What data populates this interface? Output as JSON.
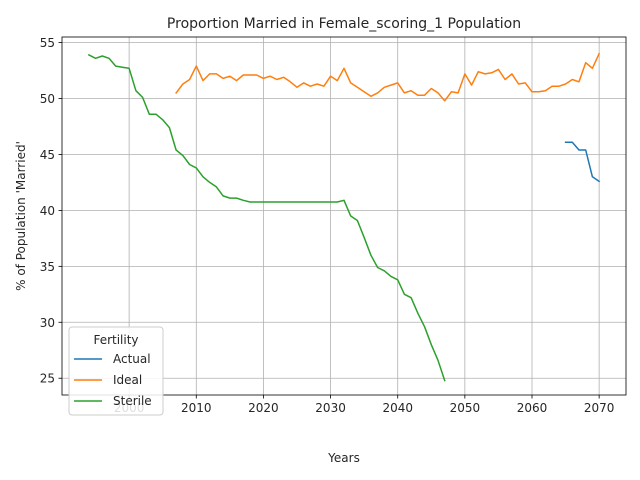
{
  "chart_data": {
    "type": "line",
    "title": "Proportion Married in Female_scoring_1 Population",
    "xlabel": "Years",
    "ylabel": "% of Population 'Married'",
    "xlim": [
      1990,
      2074
    ],
    "ylim": [
      23.5,
      55.5
    ],
    "xticks": [
      2000,
      2010,
      2020,
      2030,
      2040,
      2050,
      2060,
      2070
    ],
    "yticks": [
      25,
      30,
      35,
      40,
      45,
      50,
      55
    ],
    "grid": true,
    "legend": {
      "title": "Fertility",
      "placement": "lower-left"
    },
    "series": [
      {
        "name": "Actual",
        "color": "#1f77b4",
        "x": [
          2065,
          2066,
          2067,
          2068,
          2069,
          2070
        ],
        "y": [
          46.1,
          46.1,
          45.4,
          45.4,
          43.0,
          42.6
        ]
      },
      {
        "name": "Ideal",
        "color": "#ff7f0e",
        "x": [
          2007,
          2008,
          2009,
          2010,
          2011,
          2012,
          2013,
          2014,
          2015,
          2016,
          2017,
          2018,
          2019,
          2020,
          2021,
          2022,
          2023,
          2024,
          2025,
          2026,
          2027,
          2028,
          2029,
          2030,
          2031,
          2032,
          2033,
          2034,
          2035,
          2036,
          2037,
          2038,
          2039,
          2040,
          2041,
          2042,
          2043,
          2044,
          2045,
          2046,
          2047,
          2048,
          2049,
          2050,
          2051,
          2052,
          2053,
          2054,
          2055,
          2056,
          2057,
          2058,
          2059,
          2060,
          2061,
          2062,
          2063,
          2064,
          2065,
          2066,
          2067,
          2068,
          2069,
          2070
        ],
        "y": [
          50.5,
          51.3,
          51.7,
          52.9,
          51.6,
          52.2,
          52.2,
          51.8,
          52.0,
          51.6,
          52.1,
          52.1,
          52.1,
          51.8,
          52.0,
          51.7,
          51.9,
          51.5,
          51.0,
          51.4,
          51.1,
          51.3,
          51.1,
          52.0,
          51.6,
          52.7,
          51.4,
          51.0,
          50.6,
          50.2,
          50.5,
          51.0,
          51.2,
          51.4,
          50.5,
          50.7,
          50.3,
          50.3,
          50.9,
          50.5,
          49.8,
          50.6,
          50.5,
          52.2,
          51.2,
          52.4,
          52.2,
          52.3,
          52.6,
          51.7,
          52.2,
          51.3,
          51.4,
          50.6,
          50.6,
          50.7,
          51.1,
          51.1,
          51.3,
          51.7,
          51.5,
          53.2,
          52.7,
          54.0
        ]
      },
      {
        "name": "Sterile",
        "color": "#2ca02c",
        "x": [
          1994,
          1995,
          1996,
          1997,
          1998,
          1999,
          2000,
          2001,
          2002,
          2003,
          2004,
          2005,
          2006,
          2007,
          2008,
          2009,
          2010,
          2011,
          2012,
          2013,
          2014,
          2015,
          2016,
          2017,
          2018,
          2019,
          2020,
          2021,
          2022,
          2023,
          2024,
          2025,
          2026,
          2027,
          2028,
          2029,
          2030,
          2031,
          2032,
          2033,
          2034,
          2035,
          2036,
          2037,
          2038,
          2039,
          2040,
          2041,
          2042,
          2043,
          2044,
          2045,
          2046,
          2047
        ],
        "y": [
          53.9,
          53.6,
          53.8,
          53.6,
          52.9,
          52.8,
          52.7,
          50.7,
          50.1,
          48.6,
          48.6,
          48.1,
          47.4,
          45.4,
          44.9,
          44.1,
          43.8,
          43.0,
          42.5,
          42.1,
          41.3,
          41.1,
          41.1,
          40.9,
          40.75,
          40.75,
          40.75,
          40.75,
          40.75,
          40.75,
          40.75,
          40.75,
          40.75,
          40.75,
          40.75,
          40.75,
          40.75,
          40.75,
          40.9,
          39.5,
          39.1,
          37.6,
          36.0,
          34.9,
          34.6,
          34.1,
          33.8,
          32.5,
          32.2,
          30.8,
          29.6,
          28.0,
          26.6,
          24.8
        ]
      }
    ]
  }
}
